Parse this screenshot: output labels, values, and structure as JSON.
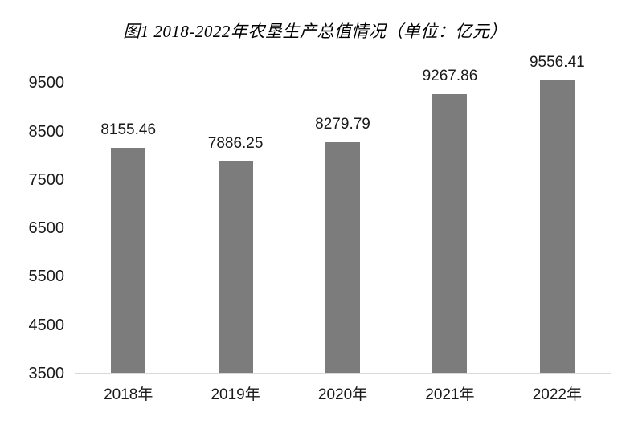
{
  "page": {
    "background_color": "#ffffff",
    "text_color": "#1a1a1a"
  },
  "chart_data": {
    "type": "bar",
    "title": "图1  2018-2022年农垦生产总值情况（单位：亿元）",
    "categories": [
      "2018年",
      "2019年",
      "2020年",
      "2021年",
      "2022年"
    ],
    "values": [
      8155.46,
      7886.25,
      8279.79,
      9267.86,
      9556.41
    ],
    "value_labels": [
      "8155.46",
      "7886.25",
      "8279.79",
      "9267.86",
      "9556.41"
    ],
    "y_ticks": [
      3500,
      4500,
      5500,
      6500,
      7500,
      8500,
      9500
    ],
    "ylim": [
      3500,
      9600
    ],
    "xlabel": "",
    "ylabel": "",
    "grid": false,
    "legend": "none",
    "bar_color": "#7c7c7c",
    "axis_line_color": "#d9d9d9",
    "title_color": "#000000",
    "label_color": "#1a1a1a"
  }
}
